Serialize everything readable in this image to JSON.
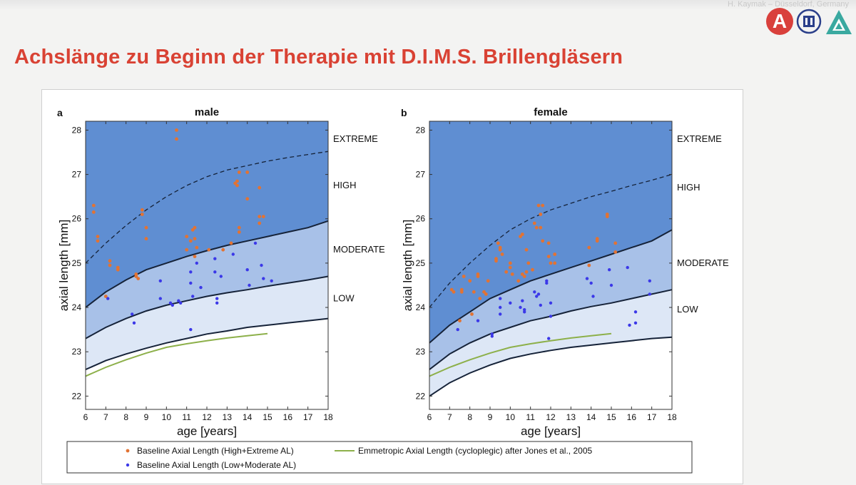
{
  "header": {
    "author": "H. Kaymak – Düsseldorf, Germany",
    "logos": [
      "logo-a-icon",
      "university-seal-icon",
      "triangle-logo-icon"
    ],
    "title": "Achslänge zu Beginn der Therapie mit D.I.M.S. Brillengläsern"
  },
  "colors": {
    "title": "#d94234",
    "extreme_high": "#5f8ed2",
    "moderate": "#a8c1e8",
    "low": "#dde7f6",
    "boundary": "#152238",
    "high_points": "#e27333",
    "low_points": "#3b38e8",
    "emmetropic": "#8db04a"
  },
  "chart_data": [
    {
      "type": "scatter",
      "panel_letter": "a",
      "title": "male",
      "xlabel": "age [years]",
      "ylabel": "axial length [mm]",
      "xlim": [
        6,
        18
      ],
      "ylim": [
        21.7,
        28.2
      ],
      "xticks": [
        6,
        7,
        8,
        9,
        10,
        11,
        12,
        13,
        14,
        15,
        16,
        17,
        18
      ],
      "yticks": [
        22,
        23,
        24,
        25,
        26,
        27,
        28
      ],
      "zone_labels": [
        {
          "text": "EXTREME",
          "y": 27.8
        },
        {
          "text": "HIGH",
          "y": 26.75
        },
        {
          "text": "MODERATE",
          "y": 25.3
        },
        {
          "text": "LOW",
          "y": 24.2
        }
      ],
      "curves": {
        "x": [
          6,
          7,
          8,
          9,
          10,
          11,
          12,
          13,
          14,
          15,
          16,
          17,
          18
        ],
        "extreme_boundary_dashed": [
          25.0,
          25.45,
          25.85,
          26.2,
          26.5,
          26.75,
          26.95,
          27.1,
          27.2,
          27.3,
          27.38,
          27.45,
          27.52
        ],
        "high_boundary": [
          24.0,
          24.35,
          24.62,
          24.85,
          25.0,
          25.15,
          25.28,
          25.4,
          25.5,
          25.6,
          25.7,
          25.8,
          25.95
        ],
        "moderate_boundary": [
          23.3,
          23.55,
          23.75,
          23.92,
          24.05,
          24.15,
          24.25,
          24.33,
          24.4,
          24.48,
          24.55,
          24.62,
          24.7
        ],
        "low_boundary": [
          22.6,
          22.8,
          22.95,
          23.08,
          23.2,
          23.3,
          23.4,
          23.47,
          23.55,
          23.6,
          23.65,
          23.7,
          23.75
        ]
      },
      "emmetropic": {
        "x": [
          6,
          7,
          8,
          9,
          10,
          11,
          12,
          13,
          14,
          15
        ],
        "y": [
          22.45,
          22.65,
          22.82,
          22.97,
          23.1,
          23.18,
          23.25,
          23.31,
          23.36,
          23.41
        ]
      },
      "series": [
        {
          "name": "Baseline Axial Length (High+Extreme AL)",
          "points": [
            [
              6.4,
              26.3
            ],
            [
              6.4,
              26.15
            ],
            [
              6.6,
              25.6
            ],
            [
              6.6,
              25.5
            ],
            [
              7.0,
              24.25
            ],
            [
              7.2,
              25.05
            ],
            [
              7.2,
              24.95
            ],
            [
              7.6,
              24.9
            ],
            [
              7.6,
              24.85
            ],
            [
              8.5,
              24.75
            ],
            [
              8.5,
              24.7
            ],
            [
              8.6,
              24.65
            ],
            [
              8.8,
              26.2
            ],
            [
              8.8,
              26.1
            ],
            [
              9.0,
              25.8
            ],
            [
              9.0,
              25.55
            ],
            [
              10.5,
              28.0
            ],
            [
              10.5,
              27.8
            ],
            [
              11.0,
              25.6
            ],
            [
              11.0,
              25.3
            ],
            [
              11.2,
              25.5
            ],
            [
              11.3,
              25.75
            ],
            [
              11.4,
              25.8
            ],
            [
              11.4,
              25.55
            ],
            [
              11.5,
              25.35
            ],
            [
              11.4,
              25.15
            ],
            [
              12.1,
              25.3
            ],
            [
              12.8,
              25.3
            ],
            [
              13.2,
              25.45
            ],
            [
              13.4,
              26.8
            ],
            [
              13.5,
              26.85
            ],
            [
              13.5,
              26.75
            ],
            [
              13.6,
              27.05
            ],
            [
              13.6,
              25.8
            ],
            [
              13.6,
              25.7
            ],
            [
              14.0,
              27.05
            ],
            [
              14.0,
              26.45
            ],
            [
              14.6,
              26.7
            ],
            [
              14.6,
              26.05
            ],
            [
              14.6,
              25.9
            ],
            [
              14.8,
              26.05
            ]
          ]
        },
        {
          "name": "Baseline Axial Length (Low+Moderate AL)",
          "points": [
            [
              7.1,
              24.2
            ],
            [
              8.3,
              23.85
            ],
            [
              8.4,
              23.65
            ],
            [
              9.7,
              24.6
            ],
            [
              9.7,
              24.2
            ],
            [
              10.2,
              24.1
            ],
            [
              10.3,
              24.05
            ],
            [
              10.6,
              24.15
            ],
            [
              10.7,
              24.1
            ],
            [
              11.2,
              23.5
            ],
            [
              11.2,
              24.8
            ],
            [
              11.2,
              24.55
            ],
            [
              11.3,
              24.25
            ],
            [
              11.5,
              25.0
            ],
            [
              11.7,
              24.45
            ],
            [
              12.4,
              25.1
            ],
            [
              12.4,
              24.8
            ],
            [
              12.5,
              24.2
            ],
            [
              12.5,
              24.1
            ],
            [
              12.7,
              24.7
            ],
            [
              13.3,
              25.2
            ],
            [
              14.0,
              24.85
            ],
            [
              14.1,
              24.5
            ],
            [
              14.4,
              25.45
            ],
            [
              14.7,
              24.95
            ],
            [
              14.8,
              24.65
            ],
            [
              15.2,
              24.6
            ]
          ]
        },
        {
          "name": "Emmetropic Axial Length (cycloplegic) after Jones et al., 2005"
        }
      ]
    },
    {
      "type": "scatter",
      "panel_letter": "b",
      "title": "female",
      "xlabel": "age [years]",
      "ylabel": "axial length [mm]",
      "xlim": [
        6,
        18
      ],
      "ylim": [
        21.7,
        28.2
      ],
      "xticks": [
        6,
        7,
        8,
        9,
        10,
        11,
        12,
        13,
        14,
        15,
        16,
        17,
        18
      ],
      "yticks": [
        22,
        23,
        24,
        25,
        26,
        27,
        28
      ],
      "zone_labels": [
        {
          "text": "EXTREME",
          "y": 27.8
        },
        {
          "text": "HIGH",
          "y": 26.7
        },
        {
          "text": "MODERATE",
          "y": 25.0
        },
        {
          "text": "LOW",
          "y": 23.95
        }
      ],
      "curves": {
        "x": [
          6,
          7,
          8,
          9,
          10,
          11,
          12,
          13,
          14,
          15,
          16,
          17,
          18
        ],
        "extreme_boundary_dashed": [
          24.0,
          24.55,
          25.0,
          25.4,
          25.75,
          26.0,
          26.2,
          26.35,
          26.5,
          26.62,
          26.75,
          26.87,
          27.0
        ],
        "high_boundary": [
          23.2,
          23.6,
          23.9,
          24.2,
          24.4,
          24.6,
          24.75,
          24.9,
          25.05,
          25.2,
          25.35,
          25.5,
          25.75
        ],
        "moderate_boundary": [
          22.6,
          22.95,
          23.2,
          23.4,
          23.55,
          23.7,
          23.8,
          23.92,
          24.02,
          24.1,
          24.2,
          24.3,
          24.4
        ],
        "low_boundary": [
          22.0,
          22.3,
          22.52,
          22.7,
          22.85,
          22.95,
          23.03,
          23.1,
          23.15,
          23.2,
          23.25,
          23.3,
          23.33
        ]
      },
      "emmetropic": {
        "x": [
          6,
          7,
          8,
          9,
          10,
          11,
          12,
          13,
          14,
          15
        ],
        "y": [
          22.45,
          22.65,
          22.82,
          22.97,
          23.1,
          23.18,
          23.25,
          23.31,
          23.36,
          23.41
        ]
      },
      "series": [
        {
          "name": "Baseline Axial Length (High+Extreme AL)",
          "points": [
            [
              7.1,
              24.4
            ],
            [
              7.2,
              24.35
            ],
            [
              7.5,
              23.7
            ],
            [
              7.6,
              24.4
            ],
            [
              7.6,
              24.35
            ],
            [
              7.7,
              24.7
            ],
            [
              8.0,
              24.6
            ],
            [
              8.1,
              23.85
            ],
            [
              8.2,
              24.35
            ],
            [
              8.4,
              24.75
            ],
            [
              8.4,
              24.7
            ],
            [
              8.5,
              24.2
            ],
            [
              8.7,
              24.35
            ],
            [
              8.8,
              24.3
            ],
            [
              8.9,
              24.6
            ],
            [
              9.3,
              25.1
            ],
            [
              9.3,
              25.05
            ],
            [
              9.4,
              25.45
            ],
            [
              9.5,
              25.35
            ],
            [
              9.5,
              25.3
            ],
            [
              9.6,
              25.2
            ],
            [
              9.8,
              24.8
            ],
            [
              10.0,
              25.0
            ],
            [
              10.0,
              24.9
            ],
            [
              10.1,
              24.75
            ],
            [
              10.4,
              24.6
            ],
            [
              10.5,
              25.6
            ],
            [
              10.6,
              25.65
            ],
            [
              10.6,
              24.75
            ],
            [
              10.7,
              24.7
            ],
            [
              10.8,
              25.3
            ],
            [
              10.8,
              24.8
            ],
            [
              10.9,
              25.0
            ],
            [
              11.1,
              24.85
            ],
            [
              11.2,
              25.9
            ],
            [
              11.3,
              25.8
            ],
            [
              11.4,
              26.3
            ],
            [
              11.5,
              26.1
            ],
            [
              11.5,
              25.8
            ],
            [
              11.6,
              26.3
            ],
            [
              11.6,
              25.5
            ],
            [
              11.9,
              25.45
            ],
            [
              11.9,
              25.15
            ],
            [
              12.0,
              25.0
            ],
            [
              12.2,
              25.2
            ],
            [
              12.2,
              25.0
            ],
            [
              13.9,
              25.35
            ],
            [
              13.9,
              24.95
            ],
            [
              14.3,
              25.55
            ],
            [
              14.3,
              25.5
            ],
            [
              14.8,
              26.1
            ],
            [
              14.8,
              26.05
            ],
            [
              15.2,
              25.45
            ],
            [
              15.2,
              25.25
            ]
          ]
        },
        {
          "name": "Baseline Axial Length (Low+Moderate AL)",
          "points": [
            [
              7.4,
              23.5
            ],
            [
              8.4,
              23.7
            ],
            [
              9.1,
              23.4
            ],
            [
              9.1,
              23.35
            ],
            [
              9.5,
              24.2
            ],
            [
              9.5,
              24.0
            ],
            [
              9.5,
              23.85
            ],
            [
              10.0,
              24.1
            ],
            [
              10.5,
              24.0
            ],
            [
              10.6,
              24.15
            ],
            [
              10.7,
              23.95
            ],
            [
              10.7,
              23.9
            ],
            [
              11.2,
              24.35
            ],
            [
              11.3,
              24.25
            ],
            [
              11.4,
              24.3
            ],
            [
              11.5,
              24.05
            ],
            [
              11.8,
              24.6
            ],
            [
              11.8,
              24.55
            ],
            [
              11.9,
              23.3
            ],
            [
              12.0,
              24.1
            ],
            [
              12.0,
              23.8
            ],
            [
              13.8,
              24.65
            ],
            [
              14.0,
              24.55
            ],
            [
              14.1,
              24.25
            ],
            [
              14.9,
              24.85
            ],
            [
              15.0,
              24.5
            ],
            [
              15.8,
              24.9
            ],
            [
              15.9,
              23.6
            ],
            [
              16.2,
              23.9
            ],
            [
              16.2,
              23.65
            ],
            [
              16.9,
              24.6
            ],
            [
              16.9,
              24.3
            ]
          ]
        },
        {
          "name": "Emmetropic Axial Length (cycloplegic) after Jones et al., 2005"
        }
      ]
    }
  ],
  "legend": {
    "items": [
      "Baseline Axial Length (High+Extreme AL)",
      "Baseline Axial Length (Low+Moderate AL)",
      "Emmetropic Axial Length (cycloplegic) after Jones et al., 2005"
    ]
  }
}
